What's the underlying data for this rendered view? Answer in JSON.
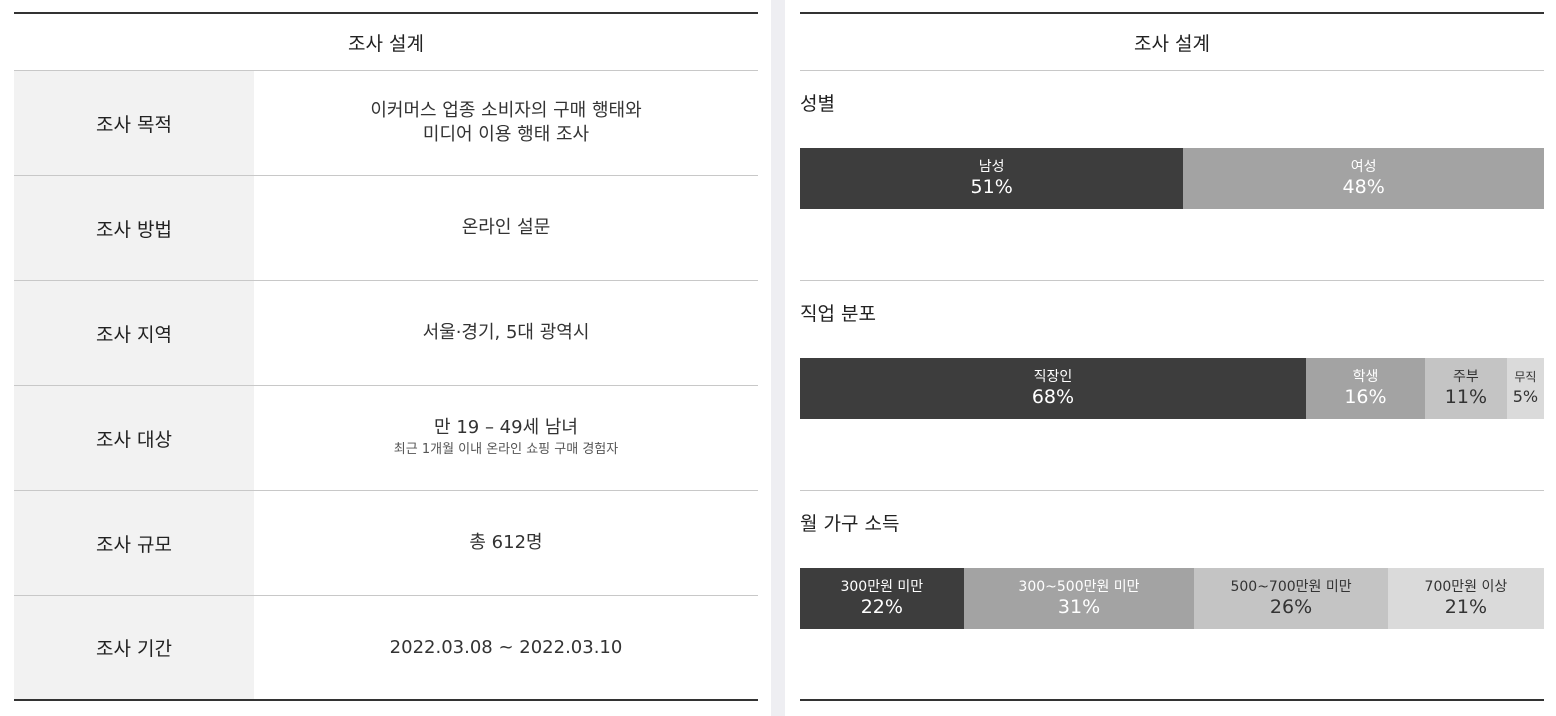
{
  "left": {
    "header": "조사 설계",
    "rows": [
      {
        "label": "조사 목적",
        "value_line1": "이커머스 업종 소비자의 구매 행태와",
        "value_line2": "미디어 이용 행태 조사"
      },
      {
        "label": "조사 방법",
        "value_line1": "온라인 설문"
      },
      {
        "label": "조사 지역",
        "value_line1": "서울·경기, 5대 광역시"
      },
      {
        "label": "조사 대상",
        "value_line1": "만 19 – 49세 남녀",
        "sub": "최근 1개월 이내 온라인 쇼핑 구매 경험자"
      },
      {
        "label": "조사 규모",
        "value_line1": "총 612명"
      },
      {
        "label": "조사 기간",
        "value_line1": "2022.03.08 ~ 2022.03.10"
      }
    ]
  },
  "right": {
    "header": "조사 설계"
  },
  "chart_data": [
    {
      "type": "bar",
      "orientation": "stacked-horizontal",
      "title": "성별",
      "categories": [
        "남성",
        "여성"
      ],
      "values": [
        51,
        48
      ],
      "value_labels": [
        "51%",
        "48%"
      ],
      "unit": "%",
      "colors": [
        "#3d3d3d",
        "#a3a3a3"
      ],
      "text_colors": [
        "#ffffff",
        "#ffffff"
      ]
    },
    {
      "type": "bar",
      "orientation": "stacked-horizontal",
      "title": "직업 분포",
      "categories": [
        "직장인",
        "학생",
        "주부",
        "무직"
      ],
      "values": [
        68,
        16,
        11,
        5
      ],
      "value_labels": [
        "68%",
        "16%",
        "11%",
        "5%"
      ],
      "unit": "%",
      "colors": [
        "#3d3d3d",
        "#a3a3a3",
        "#c4c4c4",
        "#dadada"
      ],
      "text_colors": [
        "#ffffff",
        "#ffffff",
        "#333333",
        "#333333"
      ]
    },
    {
      "type": "bar",
      "orientation": "stacked-horizontal",
      "title": "월 가구 소득",
      "categories": [
        "300만원 미만",
        "300~500만원 미만",
        "500~700만원 미만",
        "700만원 이상"
      ],
      "values": [
        22,
        31,
        26,
        21
      ],
      "value_labels": [
        "22%",
        "31%",
        "26%",
        "21%"
      ],
      "unit": "%",
      "colors": [
        "#3d3d3d",
        "#a3a3a3",
        "#c4c4c4",
        "#dadada"
      ],
      "text_colors": [
        "#ffffff",
        "#ffffff",
        "#333333",
        "#333333"
      ]
    }
  ]
}
